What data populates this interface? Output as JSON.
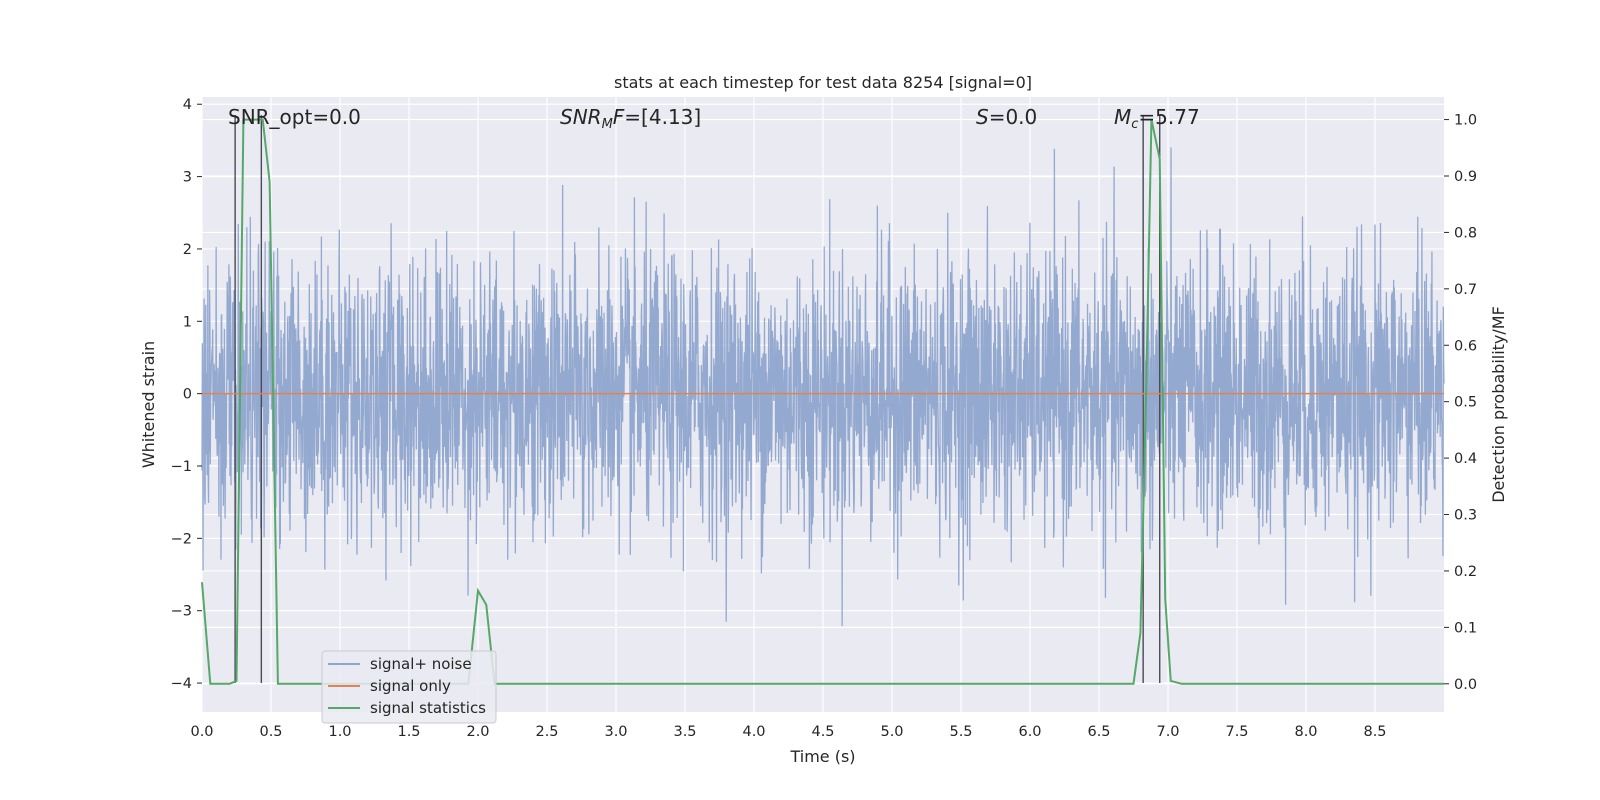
{
  "chart_data": {
    "type": "line",
    "title": "stats at each timestep for test data 8254 [signal=0]",
    "xlabel": "Time (s)",
    "ylabel": "Whitened strain",
    "y2label": "Detection probability/MF",
    "xlim": [
      0.0,
      9.0
    ],
    "ylim": [
      -4.4,
      4.1
    ],
    "y2lim": [
      -0.05,
      1.04
    ],
    "xticks": [
      "0.0",
      "0.5",
      "1.0",
      "1.5",
      "2.0",
      "2.5",
      "3.0",
      "3.5",
      "4.0",
      "4.5",
      "5.0",
      "5.5",
      "6.0",
      "6.5",
      "7.0",
      "7.5",
      "8.0",
      "8.5"
    ],
    "yticks": [
      "4",
      "3",
      "2",
      "1",
      "0",
      "−1",
      "−2",
      "−3",
      "−4"
    ],
    "y2ticks": [
      "1.0",
      "0.9",
      "0.8",
      "0.7",
      "0.6",
      "0.5",
      "0.4",
      "0.3",
      "0.2",
      "0.1",
      "0.0"
    ],
    "grid": true,
    "legend_position": "lower-left",
    "annotations": {
      "snr_opt": "SNR_opt=0.0",
      "snr_mf_base": "SNR",
      "snr_mf_sub": "M",
      "snr_mf_rest": "F=[4.13]",
      "s_italic": "S",
      "s_rest": "=0.0",
      "mc_base": "M",
      "mc_sub": "c",
      "mc_rest": "=5.77"
    },
    "vertical_markers_x": [
      0.24,
      0.43,
      6.82,
      6.94
    ],
    "series": [
      {
        "name": "signal+ noise",
        "color": "#8fa5cd",
        "description_values": "dense whitened noise, envelope roughly ±2.4 with spikes to about 3.7 and -3.4",
        "envelope": {
          "typical_max": 2.4,
          "typical_min": -2.2,
          "peak_max": 3.7,
          "peak_min": -3.4
        }
      },
      {
        "name": "signal only",
        "color": "#dd8452",
        "x": [
          0.0,
          9.0
        ],
        "values": [
          0.0,
          0.0
        ]
      },
      {
        "name": "signal statistics",
        "color": "#55a868",
        "axis": "right",
        "x": [
          0.0,
          0.06,
          0.2,
          0.25,
          0.3,
          0.34,
          0.38,
          0.44,
          0.49,
          0.55,
          0.7,
          0.9,
          1.5,
          1.93,
          2.0,
          2.06,
          2.12,
          3.0,
          4.0,
          5.0,
          6.0,
          6.5,
          6.75,
          6.8,
          6.84,
          6.88,
          6.94,
          6.98,
          7.02,
          7.1,
          8.0,
          9.0
        ],
        "values": [
          0.18,
          0.0,
          0.0,
          0.005,
          1.0,
          1.0,
          1.0,
          1.0,
          0.89,
          0.0,
          0.0,
          0.0,
          0.0,
          0.0,
          0.165,
          0.14,
          0.0,
          0.0,
          0.0,
          0.0,
          0.0,
          0.0,
          0.0,
          0.09,
          0.5,
          1.0,
          0.93,
          0.15,
          0.005,
          0.0,
          0.0,
          0.0
        ]
      }
    ]
  }
}
